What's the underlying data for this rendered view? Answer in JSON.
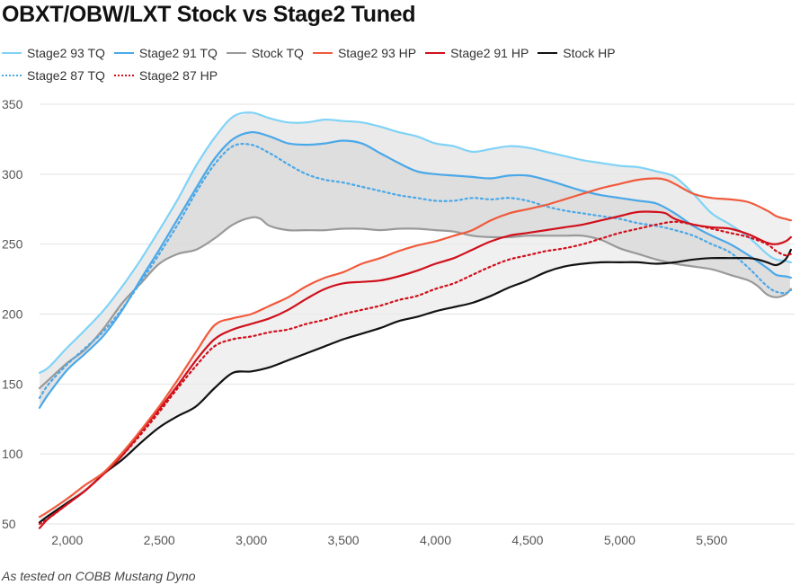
{
  "chart_data": {
    "type": "line",
    "title": "OBXT/OBW/LXT Stock vs Stage2 Tuned",
    "footnote": "As tested on COBB Mustang Dyno",
    "xlim": [
      1850,
      5950
    ],
    "ylim": [
      45,
      355
    ],
    "x_ticks": [
      2000,
      2500,
      3000,
      3500,
      4000,
      4500,
      5000,
      5500
    ],
    "x_tick_labels": [
      "2,000",
      "2,500",
      "3,000",
      "3,500",
      "4,000",
      "4,500",
      "5,000",
      "5,500"
    ],
    "y_ticks": [
      50,
      100,
      150,
      200,
      250,
      300,
      350
    ],
    "y_tick_labels": [
      "50",
      "100",
      "150",
      "200",
      "250",
      "300",
      "350"
    ],
    "grid": "horizontal",
    "legend_position": "top",
    "series": [
      {
        "name": "Stage2 93 TQ",
        "color": "#7fd3f7",
        "dash": "solid",
        "x": [
          1850,
          1900,
          2000,
          2100,
          2200,
          2300,
          2400,
          2500,
          2600,
          2700,
          2800,
          2900,
          3000,
          3100,
          3200,
          3300,
          3400,
          3500,
          3600,
          3700,
          3800,
          3900,
          4000,
          4100,
          4200,
          4300,
          4400,
          4500,
          4600,
          4700,
          4800,
          4900,
          5000,
          5100,
          5200,
          5300,
          5400,
          5500,
          5600,
          5700,
          5800,
          5850,
          5900,
          5930
        ],
        "y": [
          158,
          162,
          176,
          189,
          203,
          220,
          239,
          260,
          282,
          306,
          326,
          341,
          344,
          340,
          337,
          337,
          339,
          338,
          337,
          334,
          330,
          327,
          322,
          320,
          316,
          318,
          320,
          319,
          316,
          313,
          310,
          308,
          306,
          305,
          302,
          298,
          286,
          272,
          264,
          255,
          243,
          239,
          238,
          237
        ]
      },
      {
        "name": "Stage2 91 TQ",
        "color": "#4aa8e8",
        "dash": "solid",
        "x": [
          1850,
          1900,
          2000,
          2100,
          2200,
          2300,
          2400,
          2500,
          2600,
          2700,
          2800,
          2900,
          3000,
          3100,
          3200,
          3300,
          3400,
          3500,
          3600,
          3700,
          3800,
          3900,
          4000,
          4100,
          4200,
          4300,
          4400,
          4500,
          4600,
          4700,
          4800,
          4900,
          5000,
          5100,
          5200,
          5300,
          5400,
          5500,
          5600,
          5700,
          5800,
          5850,
          5900,
          5930
        ],
        "y": [
          133,
          143,
          160,
          172,
          185,
          203,
          225,
          246,
          268,
          290,
          311,
          325,
          330,
          327,
          322,
          321,
          322,
          324,
          322,
          315,
          308,
          302,
          300,
          299,
          298,
          297,
          299,
          299,
          296,
          292,
          288,
          285,
          283,
          281,
          279,
          272,
          263,
          256,
          250,
          242,
          233,
          228,
          227,
          226
        ]
      },
      {
        "name": "Stock TQ",
        "color": "#999999",
        "dash": "solid",
        "x": [
          1850,
          1900,
          2000,
          2100,
          2200,
          2300,
          2400,
          2500,
          2600,
          2700,
          2800,
          2900,
          3000,
          3050,
          3100,
          3200,
          3300,
          3400,
          3500,
          3600,
          3700,
          3800,
          3900,
          4000,
          4100,
          4200,
          4300,
          4400,
          4500,
          4600,
          4700,
          4800,
          4900,
          5000,
          5100,
          5200,
          5300,
          5400,
          5500,
          5600,
          5700,
          5750,
          5800,
          5850,
          5900,
          5930
        ],
        "y": [
          147,
          153,
          165,
          175,
          190,
          208,
          222,
          236,
          243,
          246,
          254,
          264,
          269,
          268,
          263,
          260,
          260,
          260,
          261,
          261,
          260,
          261,
          261,
          260,
          259,
          256,
          255,
          255,
          256,
          256,
          256,
          256,
          253,
          247,
          243,
          239,
          236,
          234,
          232,
          228,
          224,
          220,
          214,
          212,
          214,
          218
        ]
      },
      {
        "name": "Stage2 93 HP",
        "color": "#f05a3c",
        "dash": "solid",
        "x": [
          1850,
          1900,
          2000,
          2100,
          2200,
          2300,
          2400,
          2500,
          2600,
          2700,
          2800,
          2900,
          3000,
          3100,
          3200,
          3300,
          3400,
          3500,
          3600,
          3700,
          3800,
          3900,
          4000,
          4100,
          4200,
          4300,
          4400,
          4500,
          4600,
          4700,
          4800,
          4900,
          5000,
          5100,
          5200,
          5250,
          5300,
          5400,
          5500,
          5600,
          5700,
          5800,
          5850,
          5900,
          5930
        ],
        "y": [
          55,
          59,
          68,
          78,
          87,
          101,
          117,
          134,
          153,
          173,
          192,
          197,
          200,
          206,
          212,
          220,
          226,
          230,
          236,
          240,
          245,
          249,
          252,
          256,
          260,
          267,
          272,
          275,
          278,
          282,
          286,
          290,
          293,
          296,
          297,
          296,
          293,
          286,
          283,
          282,
          280,
          274,
          270,
          268,
          267
        ]
      },
      {
        "name": "Stage2 91 HP",
        "color": "#d0101c",
        "dash": "solid",
        "x": [
          1850,
          1900,
          2000,
          2100,
          2200,
          2300,
          2400,
          2500,
          2600,
          2700,
          2800,
          2900,
          3000,
          3100,
          3200,
          3300,
          3400,
          3500,
          3600,
          3700,
          3800,
          3900,
          4000,
          4100,
          4200,
          4300,
          4400,
          4500,
          4600,
          4700,
          4800,
          4900,
          5000,
          5100,
          5200,
          5250,
          5300,
          5400,
          5500,
          5600,
          5700,
          5800,
          5850,
          5900,
          5930
        ],
        "y": [
          47,
          54,
          64,
          74,
          86,
          99,
          116,
          132,
          149,
          167,
          182,
          189,
          193,
          197,
          203,
          211,
          218,
          222,
          223,
          224,
          227,
          231,
          236,
          240,
          246,
          252,
          256,
          258,
          260,
          262,
          264,
          267,
          270,
          273,
          273,
          272,
          268,
          264,
          262,
          261,
          257,
          251,
          250,
          252,
          255
        ]
      },
      {
        "name": "Stock HP",
        "color": "#111111",
        "dash": "solid",
        "x": [
          1850,
          1900,
          2000,
          2100,
          2200,
          2300,
          2400,
          2500,
          2600,
          2700,
          2800,
          2900,
          3000,
          3100,
          3200,
          3300,
          3400,
          3500,
          3600,
          3700,
          3800,
          3900,
          4000,
          4100,
          4200,
          4300,
          4400,
          4500,
          4600,
          4700,
          4800,
          4900,
          5000,
          5100,
          5200,
          5300,
          5400,
          5500,
          5600,
          5700,
          5750,
          5800,
          5850,
          5900,
          5930
        ],
        "y": [
          51,
          56,
          65,
          74,
          86,
          96,
          108,
          119,
          127,
          134,
          147,
          158,
          159,
          162,
          167,
          172,
          177,
          182,
          186,
          190,
          195,
          198,
          202,
          205,
          208,
          213,
          219,
          224,
          230,
          234,
          236,
          237,
          237,
          237,
          236,
          237,
          239,
          240,
          240,
          240,
          239,
          237,
          235,
          239,
          246
        ]
      },
      {
        "name": "Stage2 87 TQ",
        "color": "#4aa8e8",
        "dash": "dotted",
        "x": [
          1850,
          1900,
          2000,
          2100,
          2200,
          2300,
          2400,
          2500,
          2600,
          2700,
          2800,
          2900,
          3000,
          3100,
          3200,
          3300,
          3400,
          3500,
          3600,
          3700,
          3800,
          3900,
          4000,
          4100,
          4200,
          4300,
          4400,
          4500,
          4600,
          4700,
          4800,
          4900,
          5000,
          5100,
          5200,
          5300,
          5400,
          5500,
          5600,
          5700,
          5800,
          5850,
          5900,
          5930
        ],
        "y": [
          140,
          150,
          164,
          176,
          188,
          204,
          223,
          243,
          264,
          287,
          307,
          320,
          321,
          315,
          307,
          300,
          296,
          294,
          291,
          288,
          285,
          283,
          281,
          281,
          283,
          282,
          283,
          281,
          277,
          274,
          272,
          270,
          268,
          265,
          263,
          260,
          256,
          250,
          244,
          233,
          220,
          216,
          215,
          217
        ]
      },
      {
        "name": "Stage2 87 HP",
        "color": "#d0101c",
        "dash": "dotted",
        "x": [
          1850,
          1900,
          2000,
          2100,
          2200,
          2300,
          2400,
          2500,
          2600,
          2700,
          2800,
          2900,
          3000,
          3100,
          3200,
          3300,
          3400,
          3500,
          3600,
          3700,
          3800,
          3900,
          4000,
          4100,
          4200,
          4300,
          4400,
          4500,
          4600,
          4700,
          4800,
          4900,
          5000,
          5100,
          5200,
          5300,
          5400,
          5500,
          5600,
          5700,
          5800,
          5850,
          5900,
          5930
        ],
        "y": [
          50,
          54,
          64,
          74,
          86,
          99,
          114,
          130,
          147,
          163,
          177,
          182,
          184,
          187,
          189,
          193,
          196,
          200,
          203,
          206,
          210,
          213,
          218,
          222,
          228,
          234,
          239,
          242,
          245,
          247,
          250,
          254,
          258,
          261,
          264,
          266,
          264,
          261,
          258,
          255,
          250,
          245,
          242,
          243
        ]
      }
    ],
    "bands": [
      {
        "upper": "Stage2 93 TQ",
        "lower": "Stock TQ",
        "fill": "#e3e3e3"
      },
      {
        "upper": "Stage2 93 HP",
        "lower": "Stock HP",
        "fill": "#ebebeb"
      },
      {
        "upper": "Stage2 91 TQ",
        "lower": "Stock TQ",
        "fill": "#d9d9d9"
      }
    ]
  },
  "legend_rows": [
    [
      "Stage2 93 TQ",
      "Stage2 91 TQ",
      "Stock TQ",
      "Stage2 93 HP",
      "Stage2 91 HP",
      "Stock HP"
    ],
    [
      "Stage2 87 TQ",
      "Stage2 87 HP"
    ]
  ]
}
